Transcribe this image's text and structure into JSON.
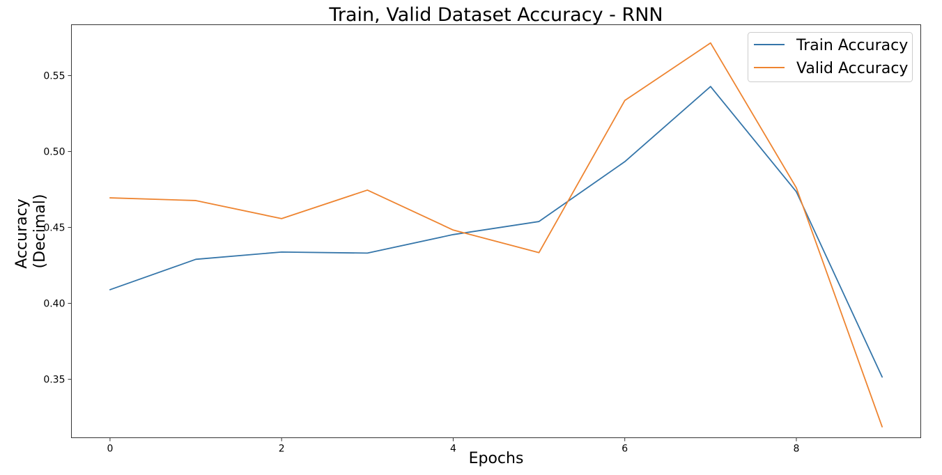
{
  "chart_data": {
    "type": "line",
    "title": "Train, Valid Dataset Accuracy - RNN",
    "xlabel": "Epochs",
    "ylabel_lines": [
      "Accuracy",
      "(Decimal)"
    ],
    "x": [
      0,
      1,
      2,
      3,
      4,
      5,
      6,
      7,
      8,
      9
    ],
    "xlim": [
      -0.45,
      9.45
    ],
    "ylim": [
      0.3115,
      0.5835
    ],
    "xticks": [
      0,
      2,
      4,
      6,
      8
    ],
    "yticks": [
      0.35,
      0.4,
      0.45,
      0.5,
      0.55
    ],
    "ytick_labels": [
      "0.35",
      "0.40",
      "0.45",
      "0.50",
      "0.55"
    ],
    "grid": false,
    "legend_position": "top-right",
    "series": [
      {
        "name": "Train Accuracy",
        "color": "#3475a9",
        "values": [
          0.409,
          0.429,
          0.4338,
          0.4331,
          0.4453,
          0.4539,
          0.4933,
          0.5428,
          0.4735,
          0.3515
        ]
      },
      {
        "name": "Valid Accuracy",
        "color": "#ee8430",
        "values": [
          0.4695,
          0.4677,
          0.4558,
          0.4746,
          0.4483,
          0.4334,
          0.5336,
          0.5715,
          0.4761,
          0.3187
        ]
      }
    ]
  }
}
